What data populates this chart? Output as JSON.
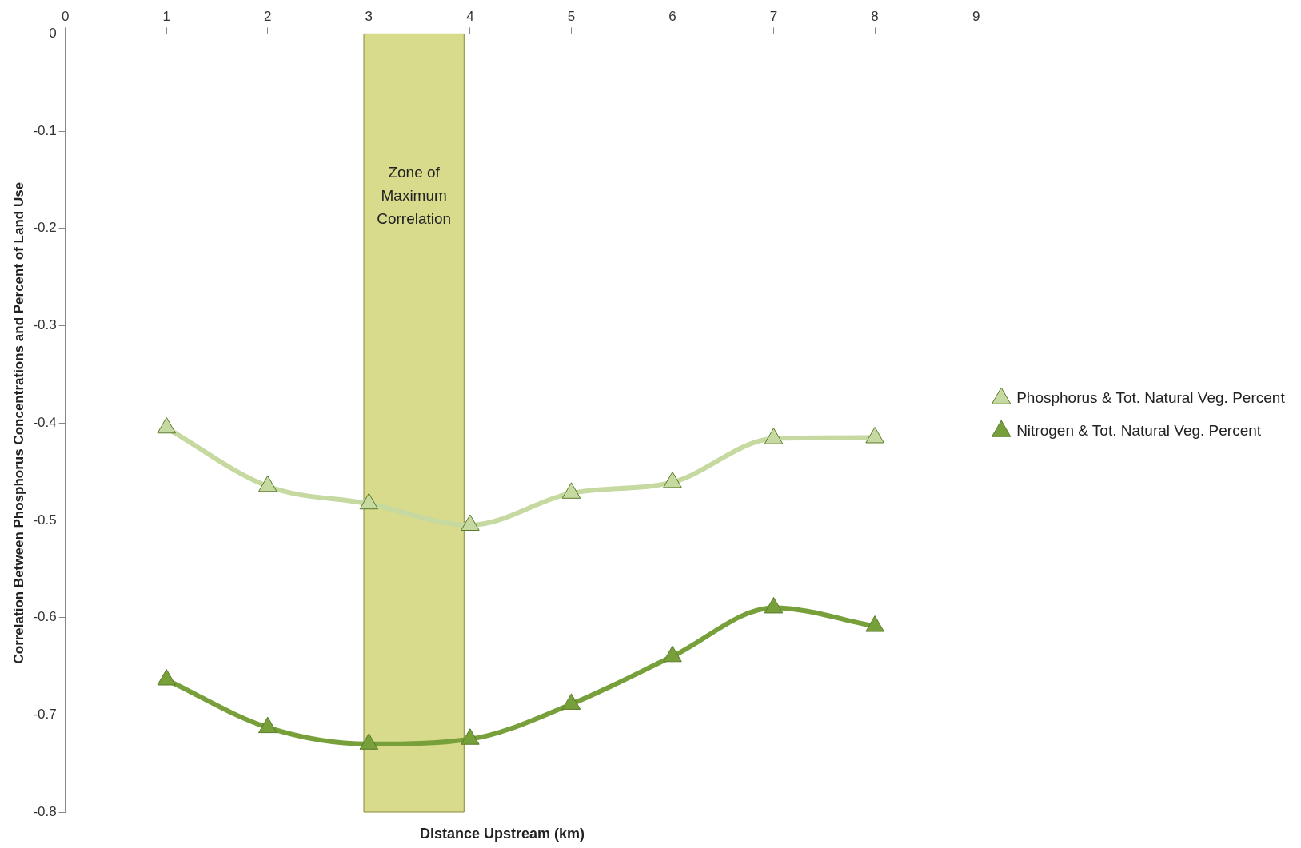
{
  "chart_data": {
    "type": "line",
    "xlabel": "Distance Upstream (km)",
    "ylabel": "Correlation Between Phosphorus Concentrations and Percent of Land Use",
    "x": [
      1,
      2,
      3,
      4,
      5,
      6,
      7,
      8
    ],
    "series": [
      {
        "name": "Phosphorus & Tot. Natural Veg. Percent",
        "color": "#c5d9a0",
        "values": [
          -0.405,
          -0.465,
          -0.483,
          -0.505,
          -0.472,
          -0.461,
          -0.416,
          -0.415
        ]
      },
      {
        "name": "Nitrogen & Tot. Natural Veg. Percent",
        "color": "#77a03a",
        "values": [
          -0.664,
          -0.713,
          -0.73,
          -0.725,
          -0.689,
          -0.64,
          -0.59,
          -0.609
        ]
      }
    ],
    "xlim": [
      0,
      9
    ],
    "xticks": [
      0,
      1,
      2,
      3,
      4,
      5,
      6,
      7,
      8,
      9
    ],
    "ylim": [
      -0.8,
      0
    ],
    "yticks": [
      0,
      -0.1,
      -0.2,
      -0.3,
      -0.4,
      -0.5,
      -0.6,
      -0.7,
      -0.8
    ],
    "bands": [
      {
        "axis": "x",
        "from": 2.95,
        "to": 3.94,
        "label": "Zone of Maximum Correlation",
        "color": "#c8cc5a"
      }
    ],
    "grid": false,
    "legend": "right",
    "marker": "triangle",
    "line_style": "solid"
  }
}
